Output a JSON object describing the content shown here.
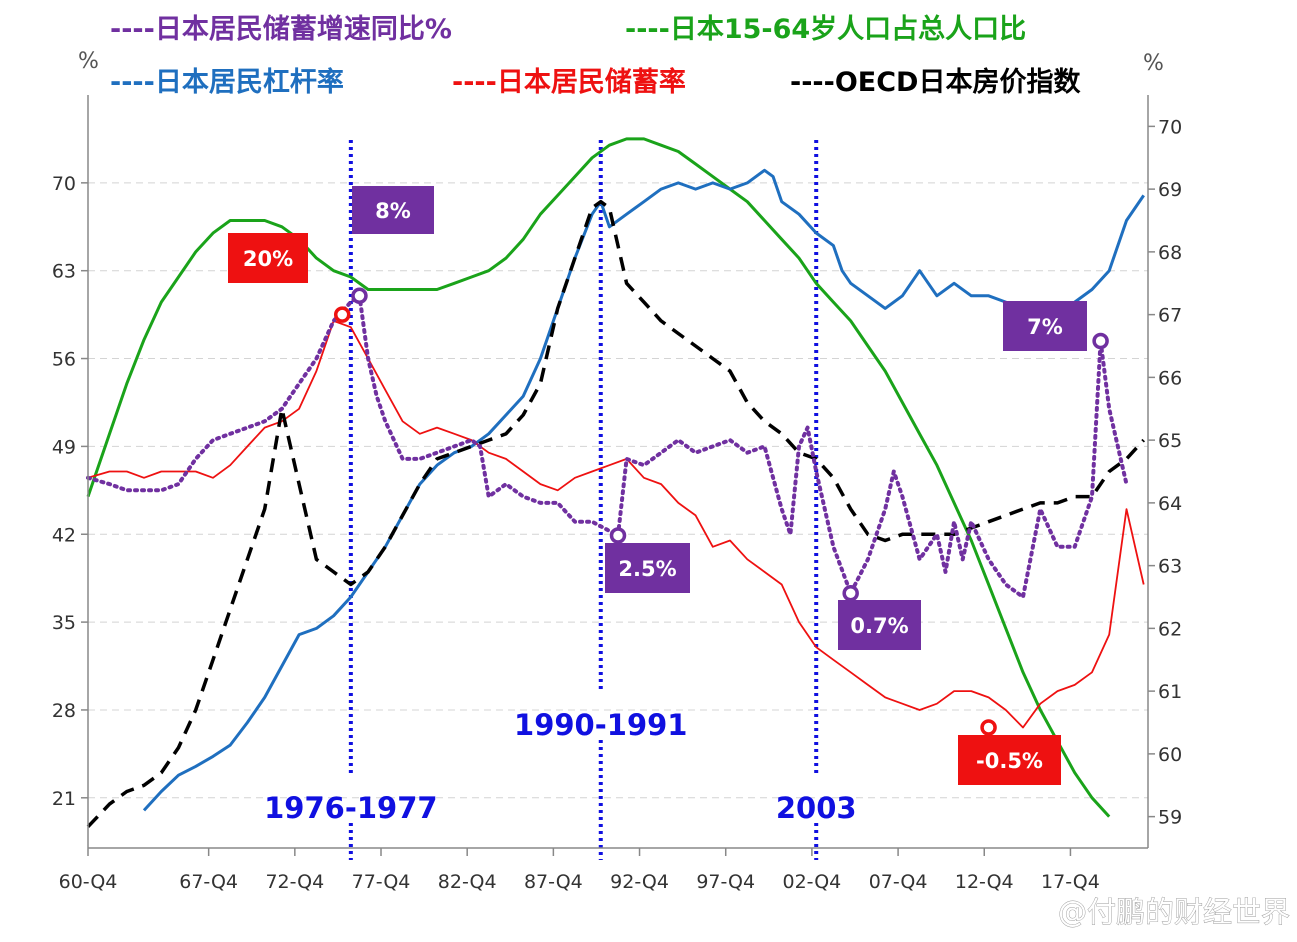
{
  "chart_data": {
    "type": "line",
    "legend": [
      {
        "series": "savings_growth_yoy",
        "label": "----日本居民储蓄增速同比%",
        "color": "#7030a0"
      },
      {
        "series": "working_age_share",
        "label": "----日本15-64岁人口占总人口比",
        "color": "#1aa31a"
      },
      {
        "series": "household_leverage",
        "label": "----日本居民杠杆率",
        "color": "#1f6fbf"
      },
      {
        "series": "household_saving_rate",
        "label": "----日本居民储蓄率",
        "color": "#ee1111"
      },
      {
        "series": "oecd_house_price_index",
        "label": "----OECD日本房价指数",
        "color": "#000000"
      }
    ],
    "x_axis": {
      "min": 1960.75,
      "max": 2022.25,
      "tick_labels": [
        "60-Q4",
        "67-Q4",
        "72-Q4",
        "77-Q4",
        "82-Q4",
        "87-Q4",
        "92-Q4",
        "97-Q4",
        "02-Q4",
        "07-Q4",
        "12-Q4",
        "17-Q4"
      ],
      "tick_positions": [
        1960.75,
        1967.75,
        1972.75,
        1977.75,
        1982.75,
        1987.75,
        1992.75,
        1997.75,
        2002.75,
        2007.75,
        2012.75,
        2017.75
      ]
    },
    "left_axis": {
      "unit": "%",
      "min": 17,
      "max": 77,
      "ticks": [
        21,
        28,
        35,
        42,
        49,
        56,
        63,
        70
      ]
    },
    "right_axis": {
      "unit": "%",
      "min": 58.5,
      "max": 70.5,
      "ticks": [
        59,
        60,
        61,
        62,
        63,
        64,
        65,
        66,
        67,
        68,
        69,
        70
      ]
    },
    "periods": [
      {
        "x": 1976.0,
        "label": "1976-1977"
      },
      {
        "x": 1990.5,
        "label": "1990-1991"
      },
      {
        "x": 2003.0,
        "label": "2003"
      }
    ],
    "callouts": [
      {
        "text": "20%",
        "color": "#ee1111",
        "marker_x": 1975.5,
        "marker_y": 59.5,
        "series": "household_saving_rate"
      },
      {
        "text": "8%",
        "color": "#7030a0",
        "marker_x": 1976.5,
        "marker_y": 61.0,
        "series": "savings_growth_yoy"
      },
      {
        "text": "2.5%",
        "color": "#7030a0",
        "marker_x": 1991.5,
        "marker_y": 41.9,
        "series": "savings_growth_yoy"
      },
      {
        "text": "0.7%",
        "color": "#7030a0",
        "marker_x": 2005.0,
        "marker_y": 37.3,
        "series": "savings_growth_yoy"
      },
      {
        "text": "-0.5%",
        "color": "#ee1111",
        "marker_x": 2013.0,
        "marker_y": 26.6,
        "series": "household_saving_rate"
      },
      {
        "text": "7%",
        "color": "#7030a0",
        "marker_x": 2019.5,
        "marker_y": 57.4,
        "series": "savings_growth_yoy"
      }
    ],
    "series": [
      {
        "id": "working_age_share",
        "axis": "right",
        "color": "#1aa31a",
        "style": "solid",
        "x": [
          1960.75,
          1962,
          1963,
          1964,
          1965,
          1966,
          1967,
          1968,
          1969,
          1970,
          1971,
          1972,
          1973,
          1974,
          1975,
          1976,
          1977,
          1978,
          1979,
          1980,
          1981,
          1982,
          1983,
          1984,
          1985,
          1986,
          1987,
          1988,
          1989,
          1990,
          1991,
          1992,
          1993,
          1994,
          1995,
          1996,
          1997,
          1998,
          1999,
          2000,
          2001,
          2002,
          2003,
          2004,
          2005,
          2006,
          2007,
          2008,
          2009,
          2010,
          2011,
          2012,
          2013,
          2014,
          2015,
          2016,
          2017,
          2018,
          2019,
          2020
        ],
        "y": [
          64.1,
          65.1,
          65.9,
          66.6,
          67.2,
          67.6,
          68.0,
          68.3,
          68.5,
          68.5,
          68.5,
          68.4,
          68.2,
          67.9,
          67.7,
          67.6,
          67.4,
          67.4,
          67.4,
          67.4,
          67.4,
          67.5,
          67.6,
          67.7,
          67.9,
          68.2,
          68.6,
          68.9,
          69.2,
          69.5,
          69.7,
          69.8,
          69.8,
          69.7,
          69.6,
          69.4,
          69.2,
          69.0,
          68.8,
          68.5,
          68.2,
          67.9,
          67.5,
          67.2,
          66.9,
          66.5,
          66.1,
          65.6,
          65.1,
          64.6,
          64.0,
          63.4,
          62.7,
          62.0,
          61.3,
          60.7,
          60.2,
          59.7,
          59.3,
          59.0
        ]
      },
      {
        "id": "household_leverage",
        "axis": "left",
        "color": "#1f6fbf",
        "style": "solid",
        "x": [
          1964,
          1965,
          1966,
          1967,
          1968,
          1969,
          1970,
          1971,
          1972,
          1973,
          1974,
          1975,
          1976,
          1977,
          1978,
          1979,
          1980,
          1981,
          1982,
          1983,
          1984,
          1985,
          1986,
          1987,
          1988,
          1989,
          1990,
          1990.5,
          1991,
          1992,
          1993,
          1994,
          1995,
          1996,
          1997,
          1998,
          1999,
          2000,
          2000.5,
          2001,
          2002,
          2003,
          2004,
          2004.5,
          2005,
          2006,
          2007,
          2008,
          2009,
          2010,
          2011,
          2012,
          2013,
          2014,
          2015,
          2016,
          2017,
          2018,
          2019,
          2020,
          2021,
          2022
        ],
        "y": [
          20,
          21.5,
          22.8,
          23.5,
          24.3,
          25.2,
          27,
          29,
          31.5,
          34,
          34.5,
          35.5,
          37,
          39,
          41,
          43.5,
          46,
          47.5,
          48.5,
          49,
          50,
          51.5,
          53,
          56,
          60,
          64,
          67.5,
          68.5,
          66.5,
          67.5,
          68.5,
          69.5,
          70,
          69.5,
          70,
          69.5,
          70,
          71,
          70.5,
          68.5,
          67.5,
          66,
          65,
          63,
          62,
          61,
          60,
          61,
          63,
          61,
          62,
          61,
          61,
          60.5,
          60,
          59.5,
          60,
          60.5,
          61.5,
          63,
          67,
          69
        ]
      },
      {
        "id": "household_saving_rate",
        "axis": "left",
        "color": "#ee1111",
        "style": "solid",
        "x": [
          1960.75,
          1962,
          1963,
          1964,
          1965,
          1966,
          1967,
          1968,
          1969,
          1970,
          1971,
          1972,
          1973,
          1974,
          1975,
          1976,
          1977,
          1978,
          1979,
          1980,
          1981,
          1982,
          1983,
          1984,
          1985,
          1986,
          1987,
          1988,
          1989,
          1990,
          1991,
          1992,
          1993,
          1994,
          1995,
          1996,
          1997,
          1998,
          1999,
          2000,
          2001,
          2002,
          2003,
          2004,
          2005,
          2006,
          2007,
          2008,
          2009,
          2010,
          2011,
          2012,
          2013,
          2014,
          2015,
          2016,
          2017,
          2018,
          2019,
          2020,
          2021,
          2022
        ],
        "y": [
          46.5,
          47,
          47,
          46.5,
          47,
          47,
          47,
          46.5,
          47.5,
          49,
          50.5,
          51,
          52,
          55,
          59,
          58.5,
          56,
          53.5,
          51,
          50,
          50.5,
          50,
          49.5,
          48.5,
          48,
          47,
          46,
          45.5,
          46.5,
          47,
          47.5,
          48,
          46.5,
          46,
          44.5,
          43.5,
          41,
          41.5,
          40,
          39,
          38,
          35,
          33,
          32,
          31,
          30,
          29,
          28.5,
          28,
          28.5,
          29.5,
          29.5,
          29,
          28,
          26.6,
          28.5,
          29.5,
          30,
          31,
          34,
          44,
          38
        ]
      },
      {
        "id": "savings_growth_yoy",
        "axis": "left",
        "color": "#7030a0",
        "style": "dotted",
        "x": [
          1960.75,
          1962,
          1963,
          1964,
          1965,
          1966,
          1967,
          1968,
          1969,
          1970,
          1971,
          1972,
          1973,
          1974,
          1975,
          1976,
          1976.5,
          1977,
          1977.5,
          1978,
          1979,
          1980,
          1981,
          1982,
          1983,
          1983.5,
          1984,
          1985,
          1986,
          1987,
          1988,
          1989,
          1990,
          1991.5,
          1992,
          1993,
          1994,
          1995,
          1996,
          1997,
          1998,
          1999,
          2000,
          2001,
          2001.5,
          2002,
          2002.5,
          2003,
          2004,
          2005,
          2006,
          2007,
          2007.5,
          2008,
          2009,
          2010,
          2010.5,
          2011,
          2011.5,
          2012,
          2013,
          2014,
          2015,
          2016,
          2017,
          2018,
          2019,
          2019.5,
          2020,
          2021
        ],
        "y": [
          46.5,
          46,
          45.5,
          45.5,
          45.5,
          46,
          48,
          49.5,
          50,
          50.5,
          51,
          52,
          54,
          56,
          59,
          60.5,
          61,
          56,
          53,
          51,
          48,
          48,
          48.5,
          49,
          49.5,
          49,
          45,
          46,
          45,
          44.5,
          44.5,
          43,
          43,
          41.9,
          48,
          47.5,
          48.5,
          49.5,
          48.5,
          49,
          49.5,
          48.5,
          49,
          44,
          42,
          49,
          50.5,
          47,
          41,
          37.3,
          40,
          44,
          47,
          45,
          40,
          42,
          39,
          43,
          40,
          43,
          40,
          38,
          37,
          44,
          41,
          41,
          45,
          57.4,
          52,
          46
        ]
      },
      {
        "id": "oecd_house_price_index",
        "axis": "left",
        "color": "#000000",
        "style": "dashed",
        "x": [
          1960.75,
          1962,
          1963,
          1964,
          1965,
          1966,
          1967,
          1968,
          1969,
          1970,
          1971,
          1972,
          1973,
          1974,
          1975,
          1976,
          1977,
          1978,
          1979,
          1980,
          1981,
          1982,
          1983,
          1984,
          1985,
          1986,
          1987,
          1988,
          1989,
          1990,
          1990.5,
          1991,
          1992,
          1993,
          1994,
          1995,
          1996,
          1997,
          1998,
          1999,
          2000,
          2001,
          2002,
          2003,
          2004,
          2005,
          2006,
          2007,
          2008,
          2009,
          2010,
          2011,
          2012,
          2013,
          2014,
          2015,
          2016,
          2017,
          2018,
          2019,
          2020,
          2021,
          2022
        ],
        "y": [
          18.7,
          20.5,
          21.5,
          22,
          23,
          25,
          28,
          32,
          36,
          40,
          44,
          52,
          46,
          40,
          39,
          38,
          39,
          41,
          43.5,
          46,
          48,
          48.5,
          49,
          49.5,
          50,
          51.5,
          54,
          60,
          64,
          68,
          68.5,
          68,
          62,
          60.5,
          59,
          58,
          57,
          56,
          55,
          52.5,
          51,
          50,
          48.5,
          48,
          46.5,
          44,
          42,
          41.5,
          42,
          42,
          42,
          42,
          42.5,
          43,
          43.5,
          44,
          44.5,
          44.5,
          45,
          45,
          47,
          48,
          49.5
        ]
      }
    ]
  },
  "unit_left": "%",
  "unit_right": "%",
  "watermark": "@付鹏的财经世界"
}
